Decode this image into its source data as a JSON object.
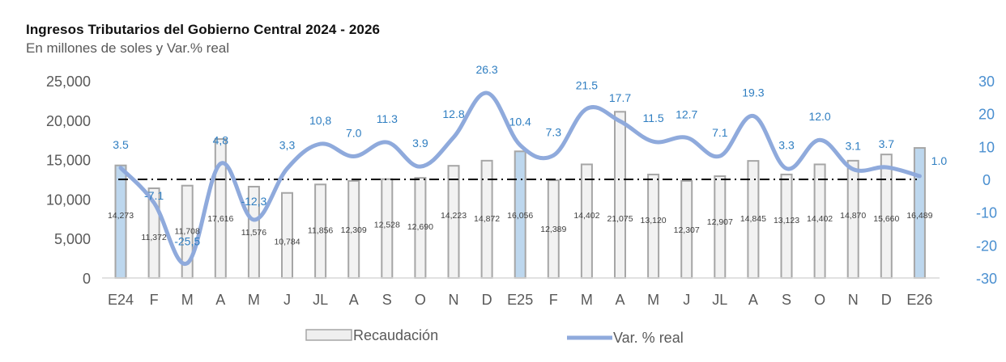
{
  "chart_data": {
    "type": "bar",
    "title": "Ingresos Tributarios del Gobierno Central 2024 - 2026",
    "subtitle": "En millones  de soles y Var.% real",
    "categories": [
      "E24",
      "F",
      "M",
      "A",
      "M",
      "J",
      "JL",
      "A",
      "S",
      "O",
      "N",
      "D",
      "E25",
      "F",
      "M",
      "A",
      "M",
      "J",
      "JL",
      "A",
      "S",
      "O",
      "N",
      "D",
      "E26"
    ],
    "series": [
      {
        "name": "Recaudación",
        "type": "bar",
        "axis": "left",
        "values": [
          14273,
          11372,
          11708,
          17616,
          11576,
          10784,
          11856,
          12309,
          12528,
          12690,
          14223,
          14872,
          16056,
          12389,
          14402,
          21075,
          13120,
          12307,
          12907,
          14845,
          13123,
          14402,
          14870,
          15660,
          16489
        ],
        "labels": [
          "14,273",
          "11,372",
          "11,708",
          "17,616",
          "11,576",
          "10,784",
          "11,856",
          "12,309",
          "12,528",
          "12,690",
          "14,223",
          "14,872",
          "16,056",
          "12,389",
          "14,402",
          "21,075",
          "13,120",
          "12,307",
          "12,907",
          "14,845",
          "13,123",
          "14,402",
          "14,870",
          "15,660",
          "16,489"
        ],
        "highlighted": [
          "E24",
          "E25",
          "E26"
        ],
        "color": "#f2f2f2",
        "highlight_color": "#bdd7ee",
        "border_color": "#a6a6a6"
      },
      {
        "name": "Var. % real",
        "type": "line",
        "axis": "right",
        "values": [
          3.5,
          -7.1,
          -25.5,
          4.8,
          -12.3,
          3.3,
          10.8,
          7.0,
          11.3,
          3.9,
          12.8,
          26.3,
          10.4,
          7.3,
          21.5,
          17.7,
          11.5,
          12.7,
          7.1,
          19.3,
          3.3,
          12.0,
          3.1,
          3.7,
          1.0
        ],
        "labels": [
          "3.5",
          "-7.1",
          "-25,5",
          "4,8",
          "-12,3",
          "3,3",
          "10,8",
          "7.0",
          "11.3",
          "3.9",
          "12.8",
          "26.3",
          "10.4",
          "7.3",
          "21.5",
          "17.7",
          "11.5",
          "12.7",
          "7.1",
          "19.3",
          "3.3",
          "12.0",
          "3.1",
          "3.7",
          "1.0"
        ],
        "color": "#8faadc",
        "label_color": "#2f7ec1"
      }
    ],
    "y_left": {
      "ylim": [
        0,
        25000
      ],
      "ticks": [
        "0",
        "5,000",
        "10,000",
        "15,000",
        "20,000",
        "25,000"
      ],
      "tick_values": [
        0,
        5000,
        10000,
        15000,
        20000,
        25000
      ]
    },
    "y_right": {
      "ylim": [
        -30,
        30
      ],
      "ticks": [
        "-30",
        "-20",
        "-10",
        "0",
        "10",
        "20",
        "30"
      ],
      "tick_values": [
        -30,
        -20,
        -10,
        0,
        10,
        20,
        30
      ]
    },
    "reference_line": {
      "axis": "right",
      "value": 0,
      "style": "dash-dot"
    },
    "grid": false,
    "legend": {
      "placement": "bottom-center",
      "entries": [
        "Recaudación",
        "Var. % real"
      ]
    }
  }
}
